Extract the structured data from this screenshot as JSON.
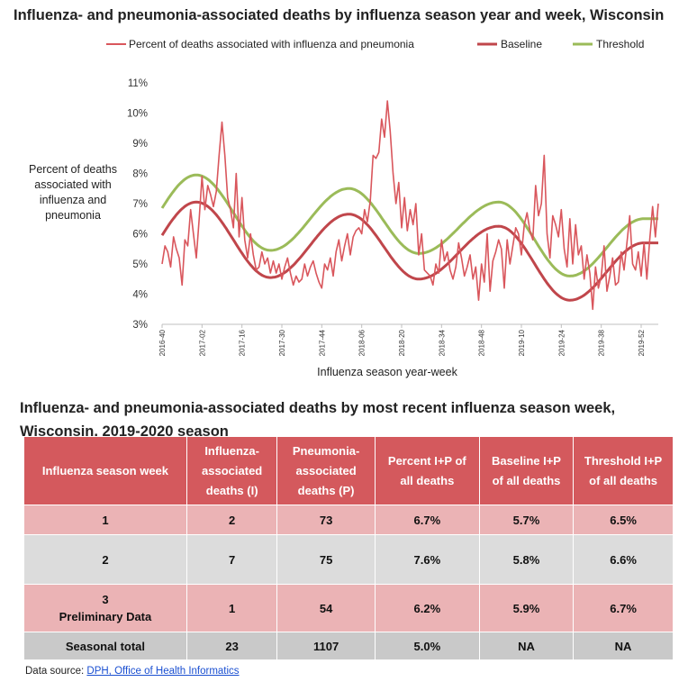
{
  "chart_data": {
    "type": "line",
    "title": "Influenza- and pneumonia-associated deaths by influenza season year and week, Wisconsin",
    "xlabel": "Influenza season year-week",
    "ylabel": "Percent of deaths associated with influenza and pneumonia",
    "ylim": [
      0.03,
      0.11
    ],
    "y_ticks": [
      "3%",
      "4%",
      "5%",
      "6%",
      "7%",
      "8%",
      "9%",
      "10%",
      "11%"
    ],
    "x_tick_labels": [
      "2016-40",
      "2017-02",
      "2017-16",
      "2017-30",
      "2017-44",
      "2018-06",
      "2018-20",
      "2018-34",
      "2018-48",
      "2019-10",
      "2019-24",
      "2019-38",
      "2019-52"
    ],
    "legend_position": "top",
    "grid": false,
    "series": [
      {
        "name": "Percent of deaths associated with influenza and pneumonia",
        "color": "#d9565c",
        "values": [
          5.0,
          5.6,
          5.4,
          4.9,
          5.9,
          5.5,
          5.2,
          4.3,
          5.8,
          5.6,
          6.8,
          6.0,
          5.2,
          6.5,
          7.9,
          6.8,
          7.6,
          7.3,
          6.9,
          7.4,
          8.6,
          9.7,
          8.6,
          7.2,
          6.8,
          6.2,
          8.0,
          5.9,
          7.2,
          5.8,
          5.2,
          6.0,
          5.3,
          4.8,
          4.9,
          5.4,
          5.0,
          5.2,
          4.7,
          5.1,
          4.7,
          5.0,
          4.5,
          4.9,
          5.2,
          4.7,
          4.3,
          4.6,
          4.4,
          4.5,
          5.0,
          4.6,
          4.9,
          5.1,
          4.7,
          4.4,
          4.2,
          5.0,
          4.8,
          5.2,
          4.6,
          5.4,
          5.8,
          5.1,
          5.6,
          6.0,
          5.3,
          5.9,
          6.1,
          6.2,
          6.0,
          6.8,
          6.4,
          7.1,
          8.6,
          8.5,
          8.7,
          9.8,
          9.2,
          10.4,
          9.4,
          8.0,
          7.0,
          7.7,
          6.2,
          7.2,
          6.1,
          6.8,
          6.3,
          7.0,
          5.3,
          6.0,
          4.8,
          4.7,
          4.6,
          4.3,
          5.0,
          4.7,
          5.8,
          5.1,
          5.4,
          4.8,
          4.5,
          4.9,
          5.7,
          5.2,
          4.6,
          4.9,
          5.3,
          4.5,
          4.9,
          3.8,
          5.0,
          4.4,
          6.0,
          4.1,
          5.1,
          5.4,
          5.8,
          5.5,
          4.2,
          5.8,
          5.0,
          5.6,
          6.2,
          6.0,
          5.3,
          6.3,
          6.7,
          6.1,
          5.8,
          7.6,
          6.6,
          7.0,
          8.6,
          6.0,
          5.2,
          6.6,
          6.3,
          5.9,
          6.8,
          5.5,
          4.9,
          6.5,
          5.0,
          6.3,
          5.3,
          5.6,
          4.5,
          5.3,
          4.7,
          3.5,
          4.9,
          4.2,
          4.6,
          5.6,
          4.1,
          4.6,
          5.2,
          4.3,
          4.4,
          5.4,
          4.8,
          5.7,
          6.6,
          5.0,
          4.8,
          5.4,
          4.6,
          5.7,
          4.5,
          5.8,
          6.9,
          5.9,
          7.0
        ]
      },
      {
        "name": "Baseline",
        "color": "#c0464b",
        "amplitude": 1.25,
        "peaks": [
          7.05,
          6.65,
          6.25,
          5.7
        ]
      },
      {
        "name": "Threshold",
        "color": "#9bbb59",
        "amplitude": 1.25,
        "peaks": [
          7.95,
          7.5,
          7.05,
          6.5
        ]
      }
    ]
  },
  "table": {
    "title_line1": "Influenza- and pneumonia-associated deaths by most recent influenza season week,",
    "title_line2": "Wisconsin, 2019-2020 season",
    "headers": {
      "week": "Influenza season week",
      "influenza": [
        "Influenza-",
        "associated",
        "deaths (I)"
      ],
      "pneumonia": [
        "Pneumonia-",
        "associated",
        "deaths (P)"
      ],
      "percent": [
        "Percent I+P of",
        "all deaths"
      ],
      "baseline": [
        "Baseline I+P",
        "of all deaths"
      ],
      "threshold": [
        "Threshold I+P",
        "of all deaths"
      ]
    },
    "rows": [
      {
        "week": "1",
        "note": "",
        "influenza": "2",
        "pneumonia": "73",
        "percent": "6.7%",
        "baseline": "5.7%",
        "threshold": "6.5%"
      },
      {
        "week": "2",
        "note": "",
        "influenza": "7",
        "pneumonia": "75",
        "percent": "7.6%",
        "baseline": "5.8%",
        "threshold": "6.6%"
      },
      {
        "week": "3",
        "note": "Preliminary Data",
        "influenza": "1",
        "pneumonia": "54",
        "percent": "6.2%",
        "baseline": "5.9%",
        "threshold": "6.7%"
      }
    ],
    "total": {
      "label": "Seasonal total",
      "influenza": "23",
      "pneumonia": "1107",
      "percent": "5.0%",
      "baseline": "NA",
      "threshold": "NA"
    }
  },
  "footer": {
    "prefix": "Data source: ",
    "link_text": "DPH, Office of Health Informatics"
  }
}
